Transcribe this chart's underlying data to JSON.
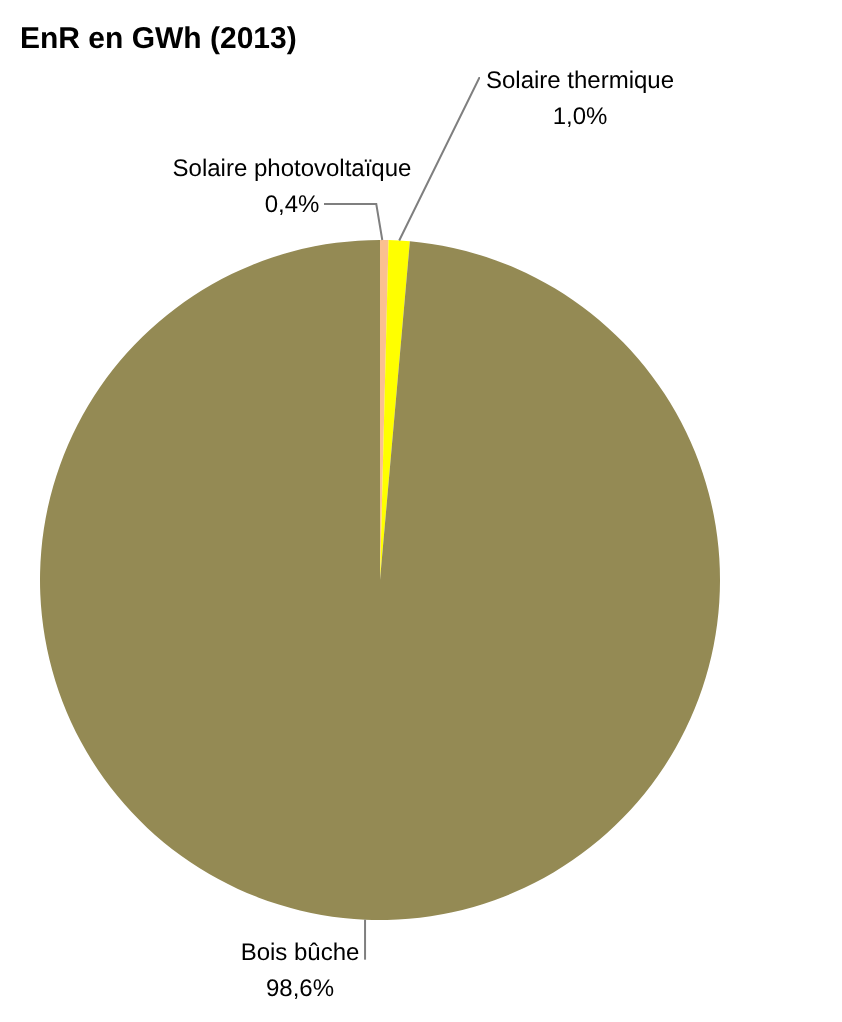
{
  "chart_data": {
    "type": "pie",
    "title": "EnR en GWh (2013)",
    "categories": [
      "Solaire photovoltaïque",
      "Solaire thermique",
      "Bois bûche"
    ],
    "values": [
      0.4,
      1.0,
      98.6
    ],
    "value_labels": [
      "0,4%",
      "1,0%",
      "98,6%"
    ],
    "colors": [
      "#fac090",
      "#ffff00",
      "#948a54"
    ]
  }
}
